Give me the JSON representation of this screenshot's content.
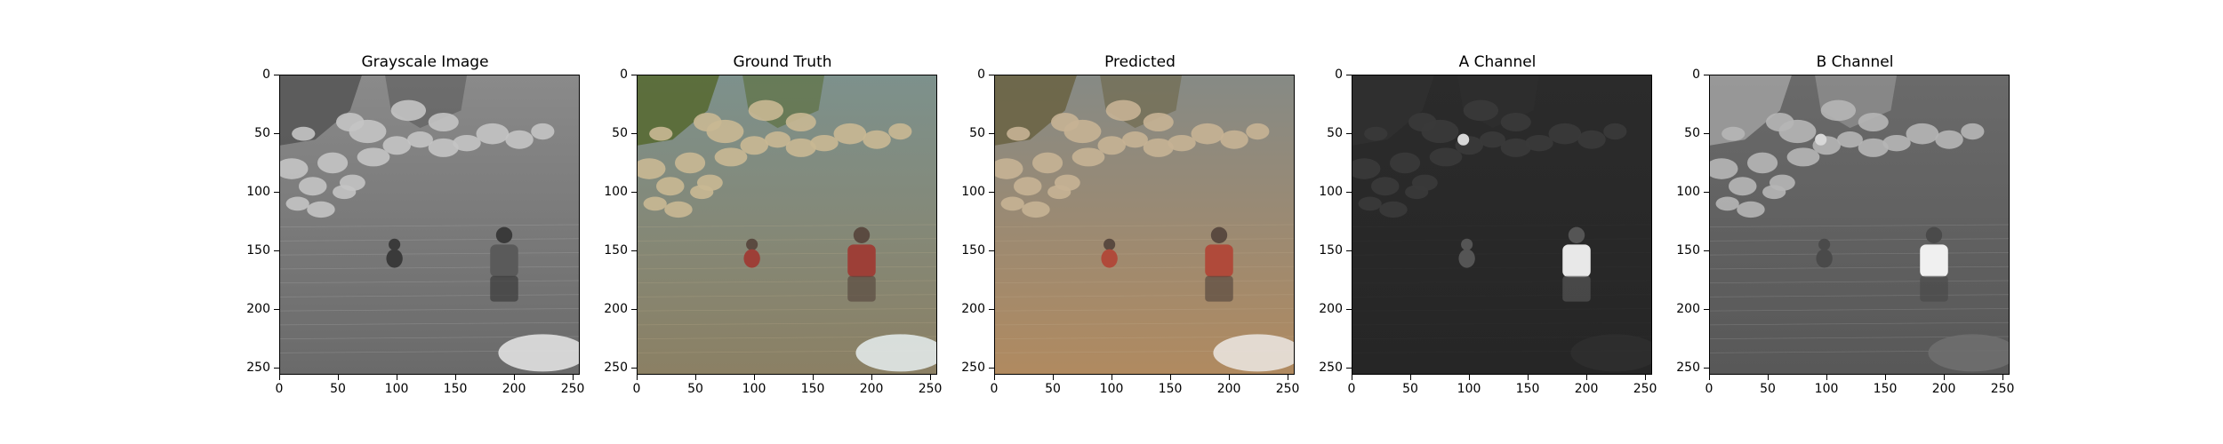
{
  "panels": [
    {
      "title": "Grayscale Image",
      "mode": "gray"
    },
    {
      "title": "Ground Truth",
      "mode": "truth"
    },
    {
      "title": "Predicted",
      "mode": "pred"
    },
    {
      "title": "A Channel",
      "mode": "achan"
    },
    {
      "title": "B Channel",
      "mode": "bchan"
    }
  ],
  "axis": {
    "y_ticks": [
      "0",
      "50",
      "100",
      "150",
      "200",
      "250"
    ],
    "x_ticks": [
      "0",
      "50",
      "100",
      "150",
      "200",
      "250"
    ],
    "range": [
      0,
      256
    ]
  },
  "colors": {
    "water": "#7f8f8c",
    "rocks": "#c8b89a",
    "vegetation": "#5f6f3a",
    "shirt": "#a8473f",
    "bg_dark": "#202020",
    "bg_light": "#c0c0c0"
  }
}
